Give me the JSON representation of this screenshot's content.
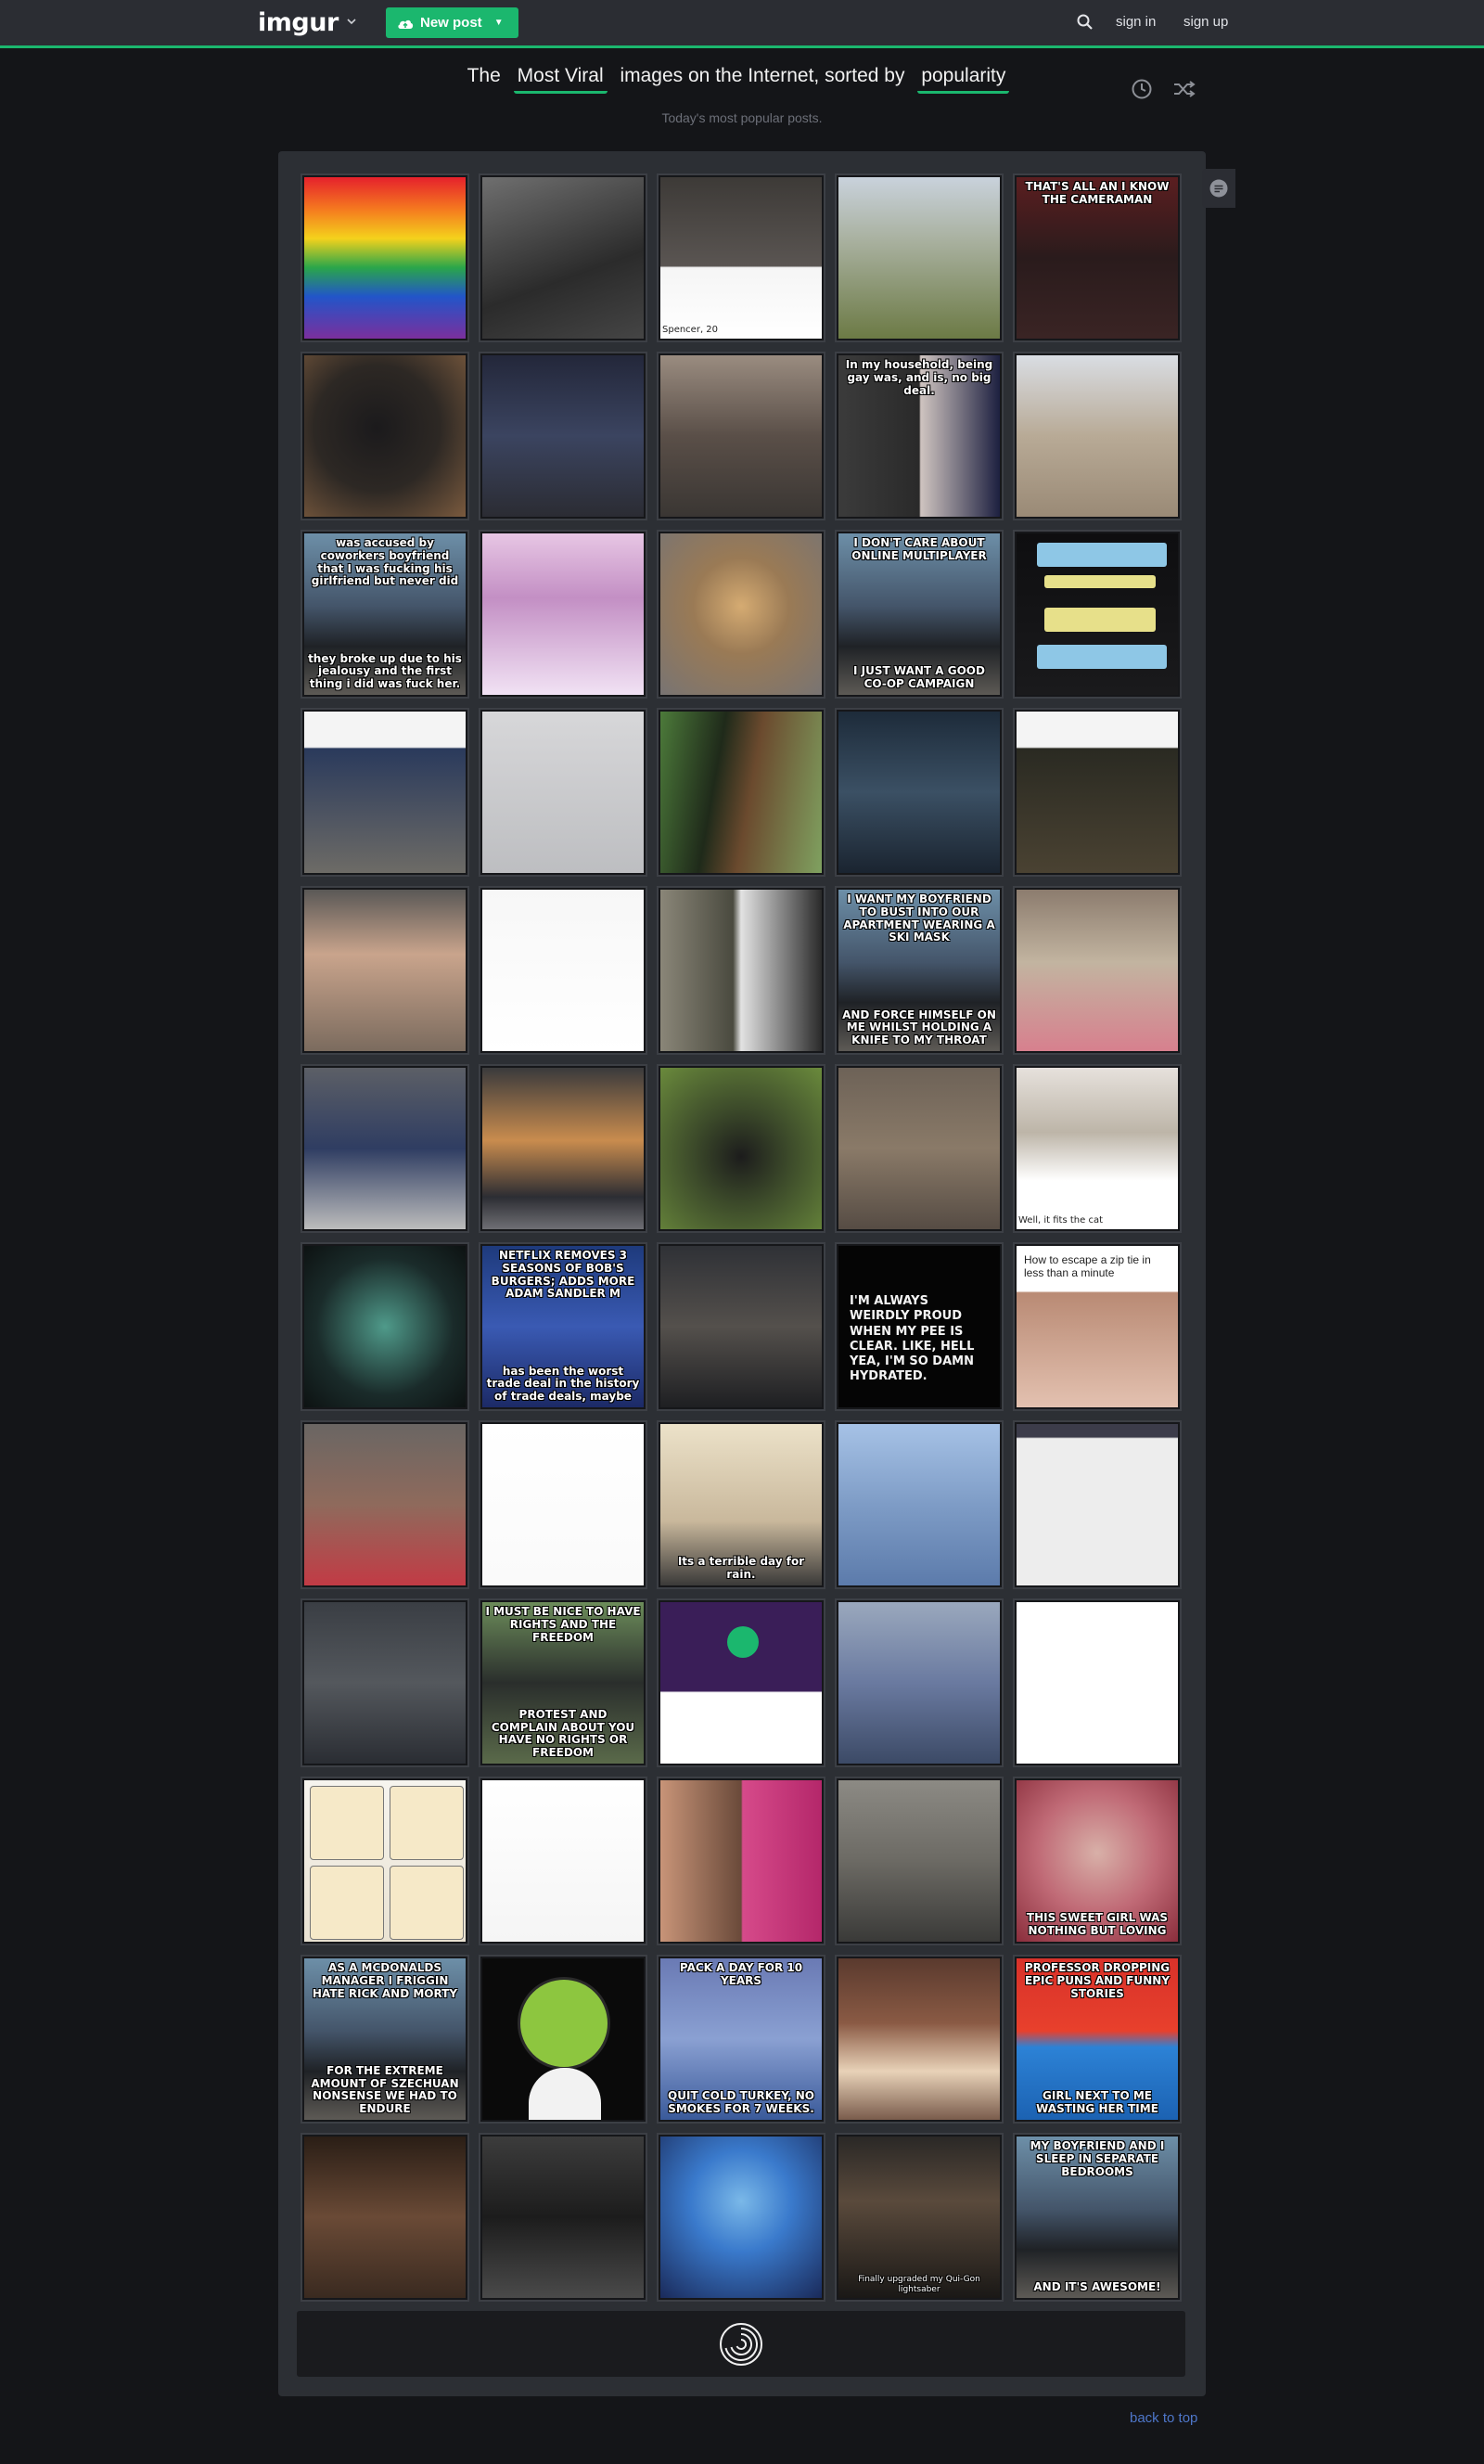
{
  "nav": {
    "logo": "imgur",
    "new_post_label": "New post",
    "sign_in": "sign in",
    "sign_up": "sign up",
    "accent": "#1bb76e"
  },
  "heading": {
    "prefix": "The",
    "section": "Most Viral",
    "middle": "images on the Internet, sorted by",
    "sort": "popularity",
    "subtitle": "Today's most popular posts."
  },
  "footer": {
    "back_to_top": "back to top"
  },
  "tiles": [
    {
      "bg": "linear-gradient(180deg,#e5212c 0%,#f57a1f 20%,#f4d21c 38%,#2aa64a 56%,#2255c9 74%,#7b2f9d 100%)",
      "top": "",
      "bottom": "",
      "dark": false
    },
    {
      "bg": "linear-gradient(160deg,#6f6f6f,#2b2b2b 60%,#454545)",
      "top": "",
      "bottom": "",
      "dark": true
    },
    {
      "bg": "linear-gradient(180deg,#3d3a37 0%,#5a5552 55%,#f5f5f5 56%,#ffffff 100%)",
      "top": "",
      "bottom": "Spencer, 20",
      "dark": false,
      "plain": true
    },
    {
      "bg": "linear-gradient(180deg,#c9d2dc 0%,#a8b09e 40%,#6c7a45 100%)",
      "top": "",
      "bottom": "",
      "dark": false
    },
    {
      "bg": "linear-gradient(180deg,#5b1e20 0%,#2a1b1c 50%,#3a2424 100%)",
      "top": "THAT'S ALL AN I KNOW THE CAMERAMAN",
      "bottom": "",
      "dark": true
    },
    {
      "bg": "radial-gradient(circle at 45% 45%,#1b1a1c 0%,#2d2824 50%,#7a5a3e 100%)",
      "top": "",
      "bottom": "",
      "dark": true
    },
    {
      "bg": "linear-gradient(180deg,#23273a 0%,#3b4460 50%,#2b2c33 100%)",
      "top": "",
      "bottom": "",
      "dark": true
    },
    {
      "bg": "linear-gradient(180deg,#9a8c80 0%,#5a4f48 50%,#3a3633 100%)",
      "top": "",
      "bottom": "",
      "dark": true
    },
    {
      "bg": "linear-gradient(90deg,#3b3b3b 0%,#2a2a2a 50%,#cfc4c0 51%,#1d2040 100%)",
      "top": "In my household, being gay was, and is, no big deal.",
      "bottom": "",
      "dark": true
    },
    {
      "bg": "linear-gradient(180deg,#d9dde3 0%,#b8aa96 50%,#9a8a76 100%)",
      "top": "",
      "bottom": "",
      "dark": false
    },
    {
      "bg": "linear-gradient(180deg,#6d8fa8 0%,#44556a 45%,#1f2226 70%,#5d5a55 100%)",
      "top": "was accused by coworkers boyfriend that I was fucking his girlfriend but never did",
      "bottom": "they broke up due to his jealousy and the first thing i did was fuck her.",
      "dark": true
    },
    {
      "bg": "linear-gradient(180deg,#e7c6e4 0%,#c38fc4 40%,#f1e2f4 100%)",
      "top": "",
      "bottom": "",
      "dark": false
    },
    {
      "bg": "radial-gradient(circle at 50% 45%,#d5ab72 0%,#9a7a55 40%,#787473 100%)",
      "top": "",
      "bottom": "",
      "dark": false
    },
    {
      "bg": "linear-gradient(180deg,#6d8fa8 0%,#44556a 45%,#1f2226 70%,#5d5a55 100%)",
      "top": "I DON'T CARE ABOUT ONLINE MULTIPLAYER",
      "bottom": "I JUST WANT A GOOD CO-OP CAMPAIGN",
      "dark": true
    },
    {
      "bg": "linear-gradient(180deg,#0e0e10 0%,#1a1a1c 100%)",
      "top": "",
      "bottom": "",
      "dark": true,
      "chat": true
    },
    {
      "bg": "linear-gradient(180deg,#f4f4f4 0%,#f4f4f4 22%,#2a3a5c 23%,#6d6b66 100%)",
      "top": "",
      "bottom": "",
      "dark": false
    },
    {
      "bg": "linear-gradient(180deg,#d7d7d9 0%,#bdbec1 100%)",
      "top": "",
      "bottom": "",
      "dark": false
    },
    {
      "bg": "linear-gradient(100deg,#4c7a3a 0%,#1f2a1a 35%,#6b4a2e 55%,#7fa160 100%)",
      "top": "",
      "bottom": "",
      "dark": true
    },
    {
      "bg": "linear-gradient(180deg,#1d2b3a 0%,#3b5064 50%,#1a2430 100%)",
      "top": "",
      "bottom": "",
      "dark": true
    },
    {
      "bg": "linear-gradient(180deg,#f4f4f4 0%,#f4f4f4 22%,#2a2a22 23%,#4a4232 100%)",
      "top": "",
      "bottom": "",
      "dark": false
    },
    {
      "bg": "linear-gradient(180deg,#5a5856 0%,#c9a48c 40%,#7b6b5e 100%)",
      "top": "",
      "bottom": "",
      "dark": false
    },
    {
      "bg": "linear-gradient(180deg,#f7f7f7 0%,#ffffff 100%)",
      "top": "",
      "bottom": "",
      "dark": false
    },
    {
      "bg": "linear-gradient(90deg,#8a8678 0%,#4a4a3f 45%,#e2e2e2 50%,#2a2a2a 100%)",
      "top": "",
      "bottom": "",
      "dark": true
    },
    {
      "bg": "linear-gradient(180deg,#6d8fa8 0%,#44556a 45%,#1f2226 70%,#5d5a55 100%)",
      "top": "I WANT MY BOYFRIEND TO BUST INTO OUR APARTMENT WEARING A SKI MASK",
      "bottom": "AND FORCE HIMSELF ON ME WHILST HOLDING A KNIFE TO MY THROAT",
      "dark": true
    },
    {
      "bg": "linear-gradient(180deg,#8c7c6e 0%,#c2b4a0 45%,#d7808e 100%)",
      "top": "",
      "bottom": "",
      "dark": false
    },
    {
      "bg": "linear-gradient(180deg,#5c5f66 0%,#2f3d62 50%,#bcbcbc 100%)",
      "top": "",
      "bottom": "",
      "dark": true
    },
    {
      "bg": "linear-gradient(180deg,#3a3a3c 0%,#c98c4e 45%,#2c2d33 80%,#6f6f74 100%)",
      "top": "",
      "bottom": "",
      "dark": true
    },
    {
      "bg": "radial-gradient(circle at 50% 55%,#1c1c1c 0%,#3c4a2a 40%,#6a8a3c 100%)",
      "top": "",
      "bottom": "",
      "dark": true
    },
    {
      "bg": "linear-gradient(180deg,#6d6257 0%,#8a7a68 50%,#564c44 100%)",
      "top": "",
      "bottom": "",
      "dark": true
    },
    {
      "bg": "linear-gradient(180deg,#e6e1dc 0%,#bdb5a8 40%,#ffffff 70%,#ffffff 100%)",
      "top": "",
      "bottom": "Well, it fits the cat",
      "dark": false,
      "plain": true
    },
    {
      "bg": "radial-gradient(circle at 50% 50%,#4f9a8a 0%,#1a2b2a 60%,#0d1212 100%)",
      "top": "",
      "bottom": "",
      "dark": true
    },
    {
      "bg": "linear-gradient(180deg,#1e3a7c 0%,#3a5ab3 50%,#1c2a66 100%)",
      "top": "NETFLIX REMOVES 3 SEASONS OF BOB'S BURGERS; ADDS MORE ADAM SANDLER M",
      "bottom": "has been the worst trade deal in the history of trade deals, maybe",
      "dark": true
    },
    {
      "bg": "linear-gradient(180deg,#2f3136 0%,#54504c 50%,#1e1f22 100%)",
      "top": "",
      "bottom": "",
      "dark": true
    },
    {
      "bg": "#050505",
      "top": "",
      "bottom": "",
      "dark": true,
      "quote": "I'M ALWAYS WEIRDLY PROUD WHEN MY PEE IS CLEAR. LIKE, HELL YEA, I'M SO DAMN HYDRATED."
    },
    {
      "bg": "linear-gradient(180deg,#ffffff 0%,#ffffff 28%,#b98a74 29%,#e3c1b0 100%)",
      "top": "",
      "bottom": "",
      "dark": false,
      "plain": true,
      "heading_text": "How to escape a zip tie in less than a minute"
    },
    {
      "bg": "linear-gradient(180deg,#6a6663 0%,#8f6a5c 50%,#c23b45 100%)",
      "top": "",
      "bottom": "",
      "dark": false
    },
    {
      "bg": "linear-gradient(180deg,#ffffff 0%,#fafafa 100%)",
      "top": "",
      "bottom": "",
      "dark": false
    },
    {
      "bg": "linear-gradient(180deg,#ece2c9 0%,#c9b89c 60%,#3b3a39 100%)",
      "top": "",
      "bottom": "Its a terrible day for rain.",
      "dark": true
    },
    {
      "bg": "linear-gradient(180deg,#a6c2e6 0%,#7e9cc6 50%,#5c7bab 100%)",
      "top": "",
      "bottom": "",
      "dark": false
    },
    {
      "bg": "linear-gradient(180deg,#3c3c4a 0%,#3c3c4a 8%,#ededed 9%,#ededed 100%)",
      "top": "",
      "bottom": "",
      "dark": false
    },
    {
      "bg": "linear-gradient(180deg,#3a3e44 0%,#54585d 50%,#2a2d33 100%)",
      "top": "",
      "bottom": "",
      "dark": true
    },
    {
      "bg": "linear-gradient(180deg,#6c8c5a 0%,#2a2e2c 50%,#5a6a4a 100%)",
      "top": "I MUST BE NICE TO HAVE RIGHTS AND THE FREEDOM",
      "bottom": "PROTEST AND COMPLAIN ABOUT YOU HAVE NO RIGHTS OR FREEDOM",
      "dark": true
    },
    {
      "bg": "linear-gradient(180deg,#3a1e58 0%,#3a1e58 55%,#ffffff 56%,#ffffff 100%)",
      "top": "",
      "bottom": "",
      "dark": true,
      "stonedfozzy": true
    },
    {
      "bg": "linear-gradient(180deg,#9aa8bd 0%,#6a7aa0 50%,#3c4a66 100%)",
      "top": "",
      "bottom": "",
      "dark": false
    },
    {
      "bg": "linear-gradient(180deg,#ffffff 0%,#ffffff 100%)",
      "top": "",
      "bottom": "",
      "dark": false
    },
    {
      "bg": "linear-gradient(180deg,#f6f4ee 0%,#e9e2d2 100%)",
      "top": "",
      "bottom": "",
      "dark": false,
      "comic": true
    },
    {
      "bg": "linear-gradient(180deg,#ffffff 0%,#f5f5f5 100%)",
      "top": "",
      "bottom": "",
      "dark": false
    },
    {
      "bg": "linear-gradient(90deg,#c89478 0%,#6a4a3a 50%,#d64a8a 51%,#b4276a 100%)",
      "top": "",
      "bottom": "",
      "dark": false
    },
    {
      "bg": "linear-gradient(180deg,#8c8a84 0%,#6c6a64 50%,#3a3a38 100%)",
      "top": "",
      "bottom": "",
      "dark": true
    },
    {
      "bg": "radial-gradient(circle at 50% 45%,#d8b0a8 0%,#c06a76 50%,#8a2e3c 100%)",
      "top": "",
      "bottom": "THIS SWEET GIRL WAS NOTHING BUT LOVING",
      "dark": true
    },
    {
      "bg": "linear-gradient(180deg,#6d8fa8 0%,#44556a 45%,#1f2226 70%,#5d5a55 100%)",
      "top": "AS A MCDONALDS MANAGER I FRIGGIN HATE RICK AND MORTY",
      "bottom": "FOR THE EXTREME AMOUNT OF SZECHUAN NONSENSE WE HAD TO ENDURE",
      "dark": true
    },
    {
      "bg": "#0a0a0a",
      "top": "",
      "bottom": "",
      "dark": true,
      "face": true
    },
    {
      "bg": "linear-gradient(180deg,#6a7ab4 0%,#8aa0d2 50%,#3a5a9a 100%)",
      "top": "PACK A DAY FOR 10 YEARS",
      "bottom": "QUIT COLD TURKEY, NO SMOKES FOR 7 WEEKS.",
      "dark": true
    },
    {
      "bg": "linear-gradient(180deg,#5a3a2e 0%,#8a5a44 40%,#e8d2b8 70%,#7a5c4c 100%)",
      "top": "",
      "bottom": "",
      "dark": true
    },
    {
      "bg": "linear-gradient(180deg,#d8322a 0%,#e8402c 45%,#2c82d6 55%,#1c62b2 100%)",
      "top": "PROFESSOR DROPPING EPIC PUNS AND FUNNY STORIES",
      "bottom": "GIRL NEXT TO ME WASTING HER TIME",
      "dark": true
    },
    {
      "bg": "linear-gradient(180deg,#2a1e16 0%,#6a4a36 50%,#3a2a20 100%)",
      "top": "",
      "bottom": "",
      "dark": true
    },
    {
      "bg": "linear-gradient(180deg,#3c3c3c 0%,#1c1c1c 50%,#4a4a4a 100%)",
      "top": "",
      "bottom": "",
      "dark": true
    },
    {
      "bg": "radial-gradient(circle at 50% 40%,#7ab8e8 0%,#3a7acc 40%,#1a2a5a 100%)",
      "top": "",
      "bottom": "",
      "dark": true
    },
    {
      "bg": "linear-gradient(180deg,#2a2826 0%,#5a4a3c 40%,#1a1816 100%)",
      "top": "",
      "bottom": "Finally upgraded my Qui-Gon lightsaber",
      "dark": true,
      "small_caption": true
    },
    {
      "bg": "linear-gradient(180deg,#6d8fa8 0%,#44556a 45%,#1f2226 70%,#5d5a55 100%)",
      "top": "MY BOYFRIEND AND I SLEEP IN SEPARATE BEDROOMS",
      "bottom": "AND IT'S AWESOME!",
      "dark": true
    }
  ]
}
